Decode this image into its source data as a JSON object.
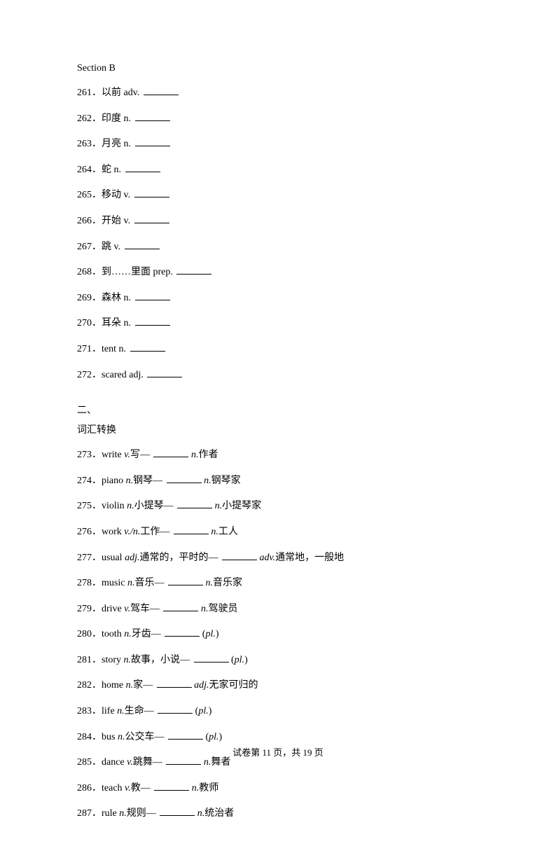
{
  "section_b_header": "Section B",
  "section_b_items": [
    {
      "num": "261",
      "text": "以前  adv."
    },
    {
      "num": "262",
      "text": "印度  n."
    },
    {
      "num": "263",
      "text": "月亮  n."
    },
    {
      "num": "264",
      "text": "蛇  n."
    },
    {
      "num": "265",
      "text": "移动  v."
    },
    {
      "num": "266",
      "text": "开始  v."
    },
    {
      "num": "267",
      "text": "跳  v."
    },
    {
      "num": "268",
      "text": "到……里面  prep."
    },
    {
      "num": "269",
      "text": "森林  n."
    },
    {
      "num": "270",
      "text": "耳朵  n."
    },
    {
      "num": "271",
      "text": "tent n."
    },
    {
      "num": "272",
      "text": "scared adj."
    }
  ],
  "section_two_title": "二、",
  "section_two_subtitle": "词汇转换",
  "section_two_items": [
    {
      "num": "273",
      "pre": "write ",
      "pos": "v.",
      "mid": "写—",
      "after_pos": "n.",
      "after": "作者"
    },
    {
      "num": "274",
      "pre": "piano ",
      "pos": "n.",
      "mid": "钢琴—",
      "after_pos": "n.",
      "after": "钢琴家"
    },
    {
      "num": "275",
      "pre": "violin ",
      "pos": "n.",
      "mid": "小提琴—",
      "after_pos": "n.",
      "after": "小提琴家"
    },
    {
      "num": "276",
      "pre": "work ",
      "pos": "v./n.",
      "mid": "工作—",
      "after_pos": "n.",
      "after": "工人"
    },
    {
      "num": "277",
      "pre": "usual ",
      "pos": "adj.",
      "mid": "通常的，平时的—",
      "after_pos": "adv.",
      "after": "通常地，一般地"
    },
    {
      "num": "278",
      "pre": "music ",
      "pos": "n.",
      "mid": "音乐—",
      "after_pos": "n.",
      "after": "音乐家"
    },
    {
      "num": "279",
      "pre": "drive ",
      "pos": "v.",
      "mid": "驾车—",
      "after_pos": "n.",
      "after": "驾驶员"
    },
    {
      "num": "280",
      "pre": "tooth ",
      "pos": "n.",
      "mid": "牙齿—",
      "after_pos": "",
      "after": "(",
      "pl": "pl.",
      "close": ")"
    },
    {
      "num": "281",
      "pre": "story ",
      "pos": "n.",
      "mid": "故事，小说—",
      "after_pos": "",
      "after": "(",
      "pl": "pl.",
      "close": ")"
    },
    {
      "num": "282",
      "pre": "home ",
      "pos": "n.",
      "mid": "家—",
      "after_pos": "adj.",
      "after": "无家可归的"
    },
    {
      "num": "283",
      "pre": "life ",
      "pos": "n.",
      "mid": "生命—",
      "after_pos": "",
      "after": "(",
      "pl": "pl.",
      "close": ")"
    },
    {
      "num": "284",
      "pre": "bus ",
      "pos": "n.",
      "mid": "公交车—",
      "after_pos": "",
      "after": "(",
      "pl": "pl.",
      "close": ")"
    },
    {
      "num": "285",
      "pre": "dance ",
      "pos": "v.",
      "mid": "跳舞—",
      "after_pos": "n.",
      "after": "舞者"
    },
    {
      "num": "286",
      "pre": "teach ",
      "pos": "v.",
      "mid": "教—",
      "after_pos": "n.",
      "after": "教师"
    },
    {
      "num": "287",
      "pre": "rule ",
      "pos": "n.",
      "mid": "规则—",
      "after_pos": "n.",
      "after": "统治者"
    }
  ],
  "footer_text": "试卷第 11 页，共 19 页"
}
